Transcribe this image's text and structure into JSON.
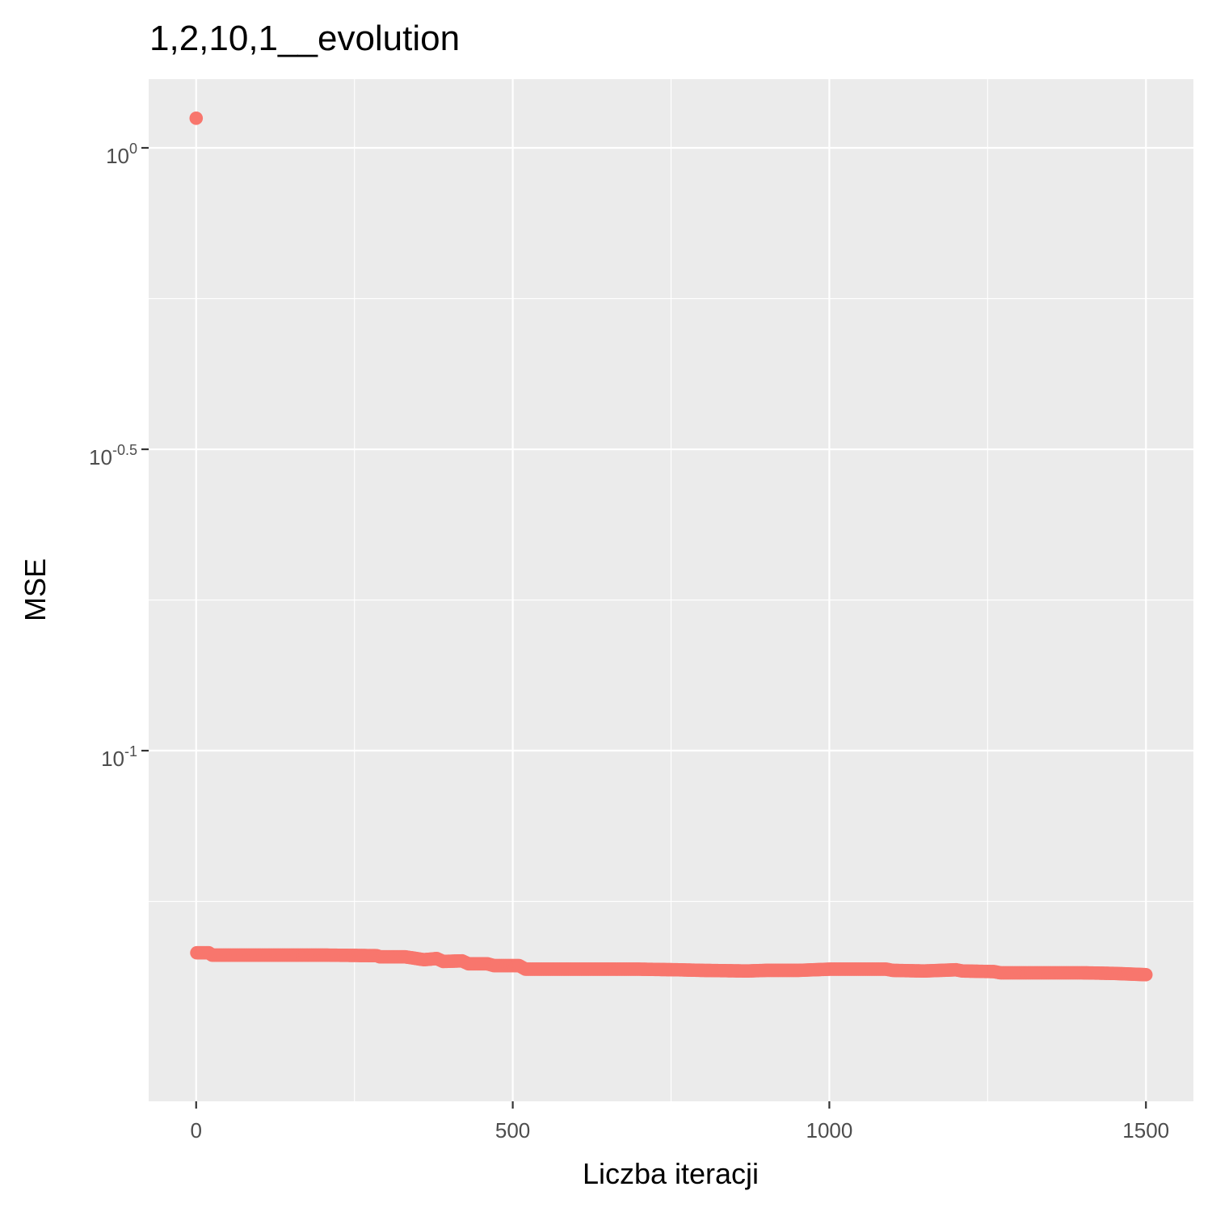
{
  "chart_data": {
    "type": "scatter",
    "title": "1,2,10,1__evolution",
    "xlabel": "Liczba iteracji",
    "ylabel": "MSE",
    "x_scale": "linear",
    "y_scale": "log10",
    "xlim": [
      -75,
      1575
    ],
    "ylim": [
      0.0262,
      1.3
    ],
    "x_ticks": [
      {
        "value": 0,
        "label": "0"
      },
      {
        "value": 500,
        "label": "500"
      },
      {
        "value": 1000,
        "label": "1000"
      },
      {
        "value": 1500,
        "label": "1500"
      }
    ],
    "y_ticks": [
      {
        "value": 1,
        "base": "10",
        "exp": "0"
      },
      {
        "value": 0.3162,
        "base": "10",
        "exp": "-0.5"
      },
      {
        "value": 0.1,
        "base": "10",
        "exp": "-1"
      }
    ],
    "grid": true,
    "point_color": "#F8766D",
    "background_color": "#EBEBEB",
    "grid_color": "#FFFFFF",
    "outlier": {
      "x": 0,
      "y": 1.12
    },
    "trend": [
      [
        1,
        0.0462
      ],
      [
        20,
        0.0462
      ],
      [
        25,
        0.0458
      ],
      [
        100,
        0.0458
      ],
      [
        200,
        0.0458
      ],
      [
        285,
        0.0457
      ],
      [
        290,
        0.0455
      ],
      [
        330,
        0.0455
      ],
      [
        360,
        0.045
      ],
      [
        380,
        0.0452
      ],
      [
        390,
        0.0447
      ],
      [
        420,
        0.0448
      ],
      [
        430,
        0.0443
      ],
      [
        460,
        0.0443
      ],
      [
        470,
        0.044
      ],
      [
        510,
        0.044
      ],
      [
        520,
        0.0434
      ],
      [
        600,
        0.0434
      ],
      [
        700,
        0.0434
      ],
      [
        760,
        0.0433
      ],
      [
        800,
        0.0432
      ],
      [
        870,
        0.0431
      ],
      [
        900,
        0.0432
      ],
      [
        950,
        0.0432
      ],
      [
        1000,
        0.0434
      ],
      [
        1050,
        0.0434
      ],
      [
        1090,
        0.0434
      ],
      [
        1100,
        0.0432
      ],
      [
        1150,
        0.0431
      ],
      [
        1200,
        0.0433
      ],
      [
        1210,
        0.0431
      ],
      [
        1260,
        0.043
      ],
      [
        1270,
        0.0428
      ],
      [
        1350,
        0.0428
      ],
      [
        1400,
        0.0428
      ],
      [
        1450,
        0.0427
      ],
      [
        1500,
        0.0425
      ]
    ]
  }
}
